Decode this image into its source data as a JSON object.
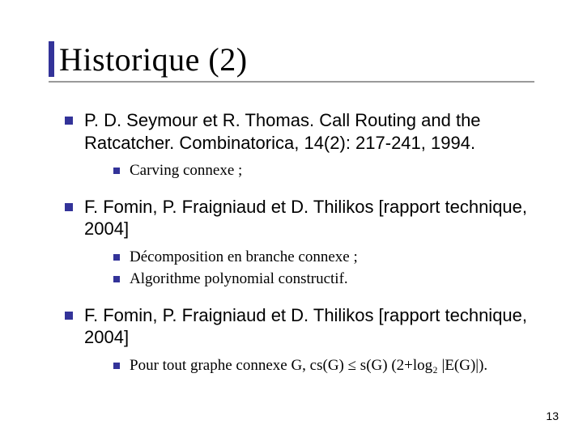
{
  "colors": {
    "accent": "#333399",
    "underline": "#9a9a9a",
    "text": "#000000",
    "pagenum": "#000000"
  },
  "title": "Historique (2)",
  "items": [
    {
      "text": "P. D. Seymour et R. Thomas. Call Routing and the Ratcatcher. Combinatorica, 14(2): 217-241, 1994.",
      "sub": [
        {
          "text": "Carving connexe ;"
        }
      ]
    },
    {
      "text": "F. Fomin, P. Fraigniaud et D. Thilikos [rapport technique, 2004]",
      "sub": [
        {
          "text": "Décomposition en branche connexe ;"
        },
        {
          "text": "Algorithme polynomial constructif."
        }
      ]
    },
    {
      "text": "F. Fomin, P. Fraigniaud et D. Thilikos [rapport technique, 2004]",
      "sub": [
        {
          "text": "Pour tout graphe connexe G, cs(G) ≤ s(G) (2+log₂ |E(G)|)."
        }
      ]
    }
  ],
  "page_number": "13"
}
